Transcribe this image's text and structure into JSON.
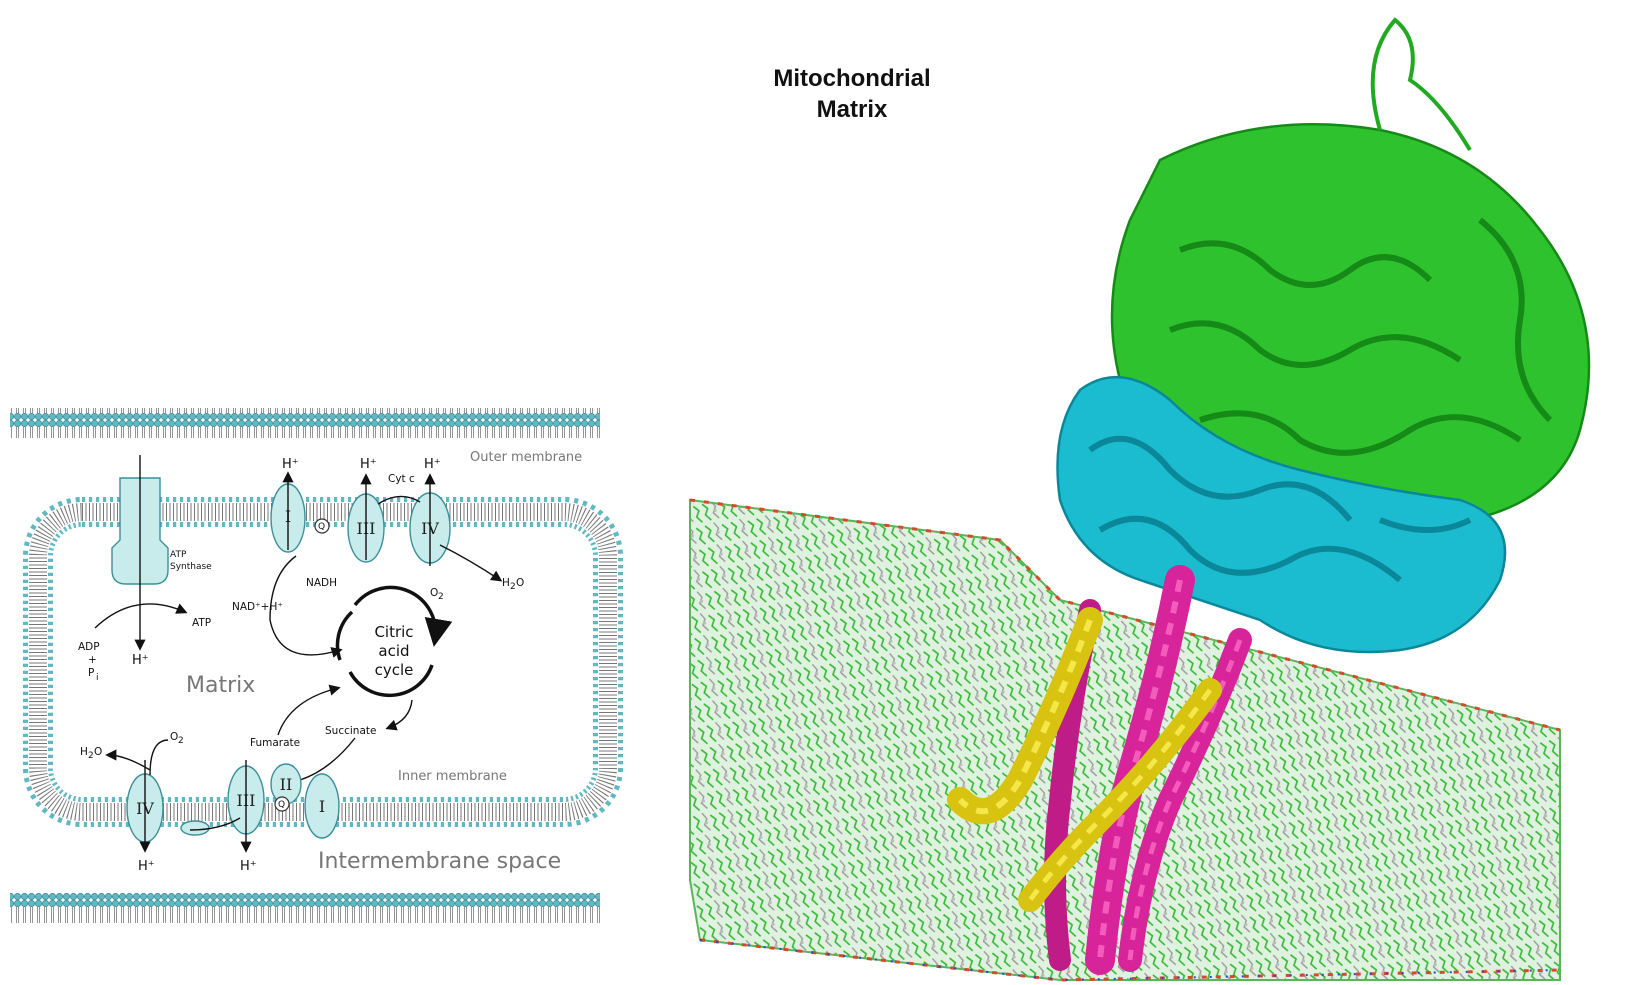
{
  "title": {
    "line1": "Mitochondrial",
    "line2": "Matrix"
  },
  "diagram": {
    "outer_membrane": "Outer membrane",
    "inner_membrane": "Inner membrane",
    "intermembrane_space": "Intermembrane space",
    "matrix": "Matrix",
    "atp_synthase": {
      "line1": "ATP",
      "line2": "Synthase"
    },
    "atp": "ATP",
    "adp": {
      "line1": "ADP",
      "line2": "+",
      "line3": "P",
      "sub": "i"
    },
    "nadh": "NADH",
    "nad": "NAD⁺+H⁺",
    "cyt_c": "Cyt c",
    "o2": "O",
    "o2_sub": "2",
    "h2o": "H",
    "h2o_sub": "2",
    "h2o_o": "O",
    "h_plus": "H⁺",
    "fumarate": "Fumarate",
    "succinate": "Succinate",
    "citric_cycle": {
      "line1": "Citric",
      "line2": "acid",
      "line3": "cycle"
    },
    "complex_I": "I",
    "complex_II": "II",
    "complex_III": "III",
    "complex_IV": "IV",
    "q": "Q"
  },
  "colors": {
    "membrane_head": "#5fb8c2",
    "complex_fill": "#c8ecec",
    "protein_green": "#22b822",
    "protein_cyan": "#18b8cc",
    "protein_magenta": "#d8249a",
    "protein_yellow": "#d8c410",
    "lipid_green": "#3cc83c"
  }
}
